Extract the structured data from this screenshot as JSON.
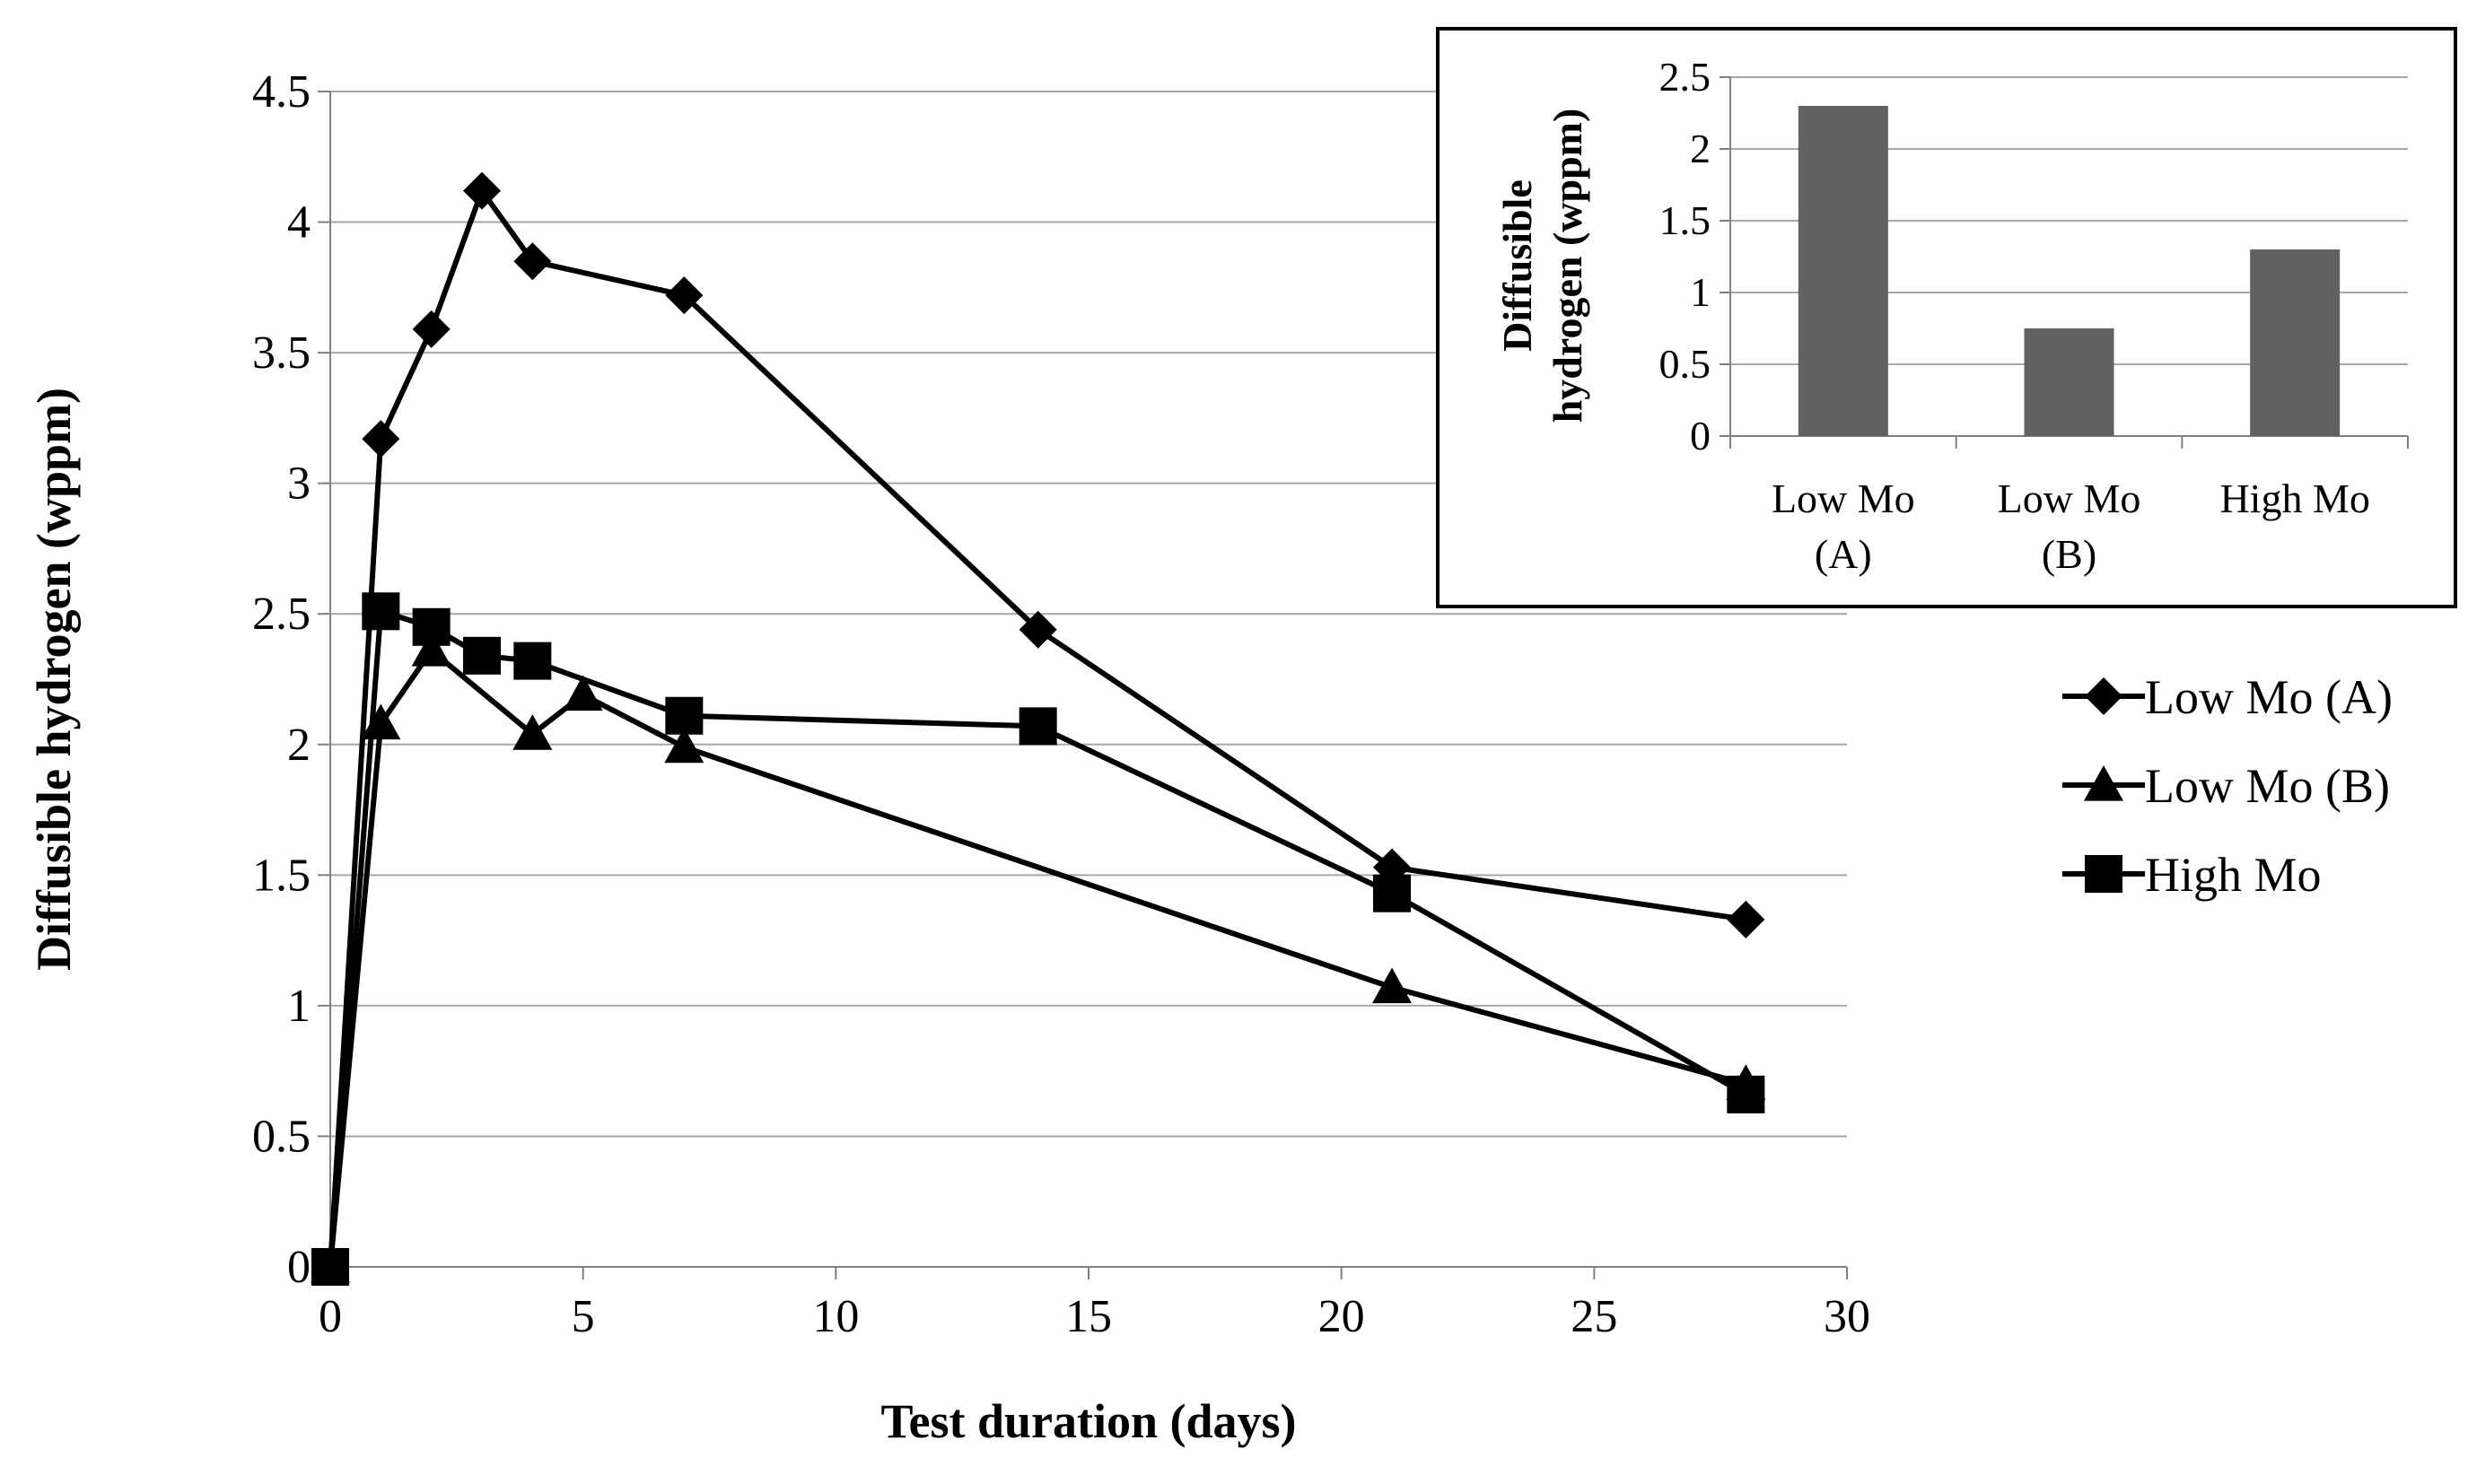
{
  "chart_data": [
    {
      "type": "line",
      "xlabel": "Test duration (days)",
      "ylabel": "Diffusible hydrogen (wppm)",
      "xlim": [
        0,
        30
      ],
      "ylim": [
        0,
        4.5
      ],
      "xticks": [
        "0",
        "5",
        "10",
        "15",
        "20",
        "25",
        "30"
      ],
      "yticks": [
        "0",
        "0.5",
        "1",
        "1.5",
        "2",
        "2.5",
        "3",
        "3.5",
        "4",
        "4.5"
      ],
      "grid": "horizontal",
      "legend": "right",
      "series": [
        {
          "name": "Low Mo (A)",
          "marker": "diamond",
          "points": [
            [
              0,
              0
            ],
            [
              1,
              3.17
            ],
            [
              2,
              3.59
            ],
            [
              3,
              4.12
            ],
            [
              4,
              3.85
            ],
            [
              7,
              3.72
            ],
            [
              14,
              2.44
            ],
            [
              21,
              1.53
            ],
            [
              28,
              1.33
            ]
          ]
        },
        {
          "name": "Low Mo (B)",
          "marker": "triangle",
          "points": [
            [
              0,
              0
            ],
            [
              1,
              2.08
            ],
            [
              2,
              2.36
            ],
            [
              4,
              2.04
            ],
            [
              5,
              2.19
            ],
            [
              7,
              1.99
            ],
            [
              21,
              1.07
            ],
            [
              28,
              0.7
            ]
          ]
        },
        {
          "name": "High Mo",
          "marker": "square",
          "points": [
            [
              0,
              0
            ],
            [
              1,
              2.51
            ],
            [
              2,
              2.45
            ],
            [
              3,
              2.34
            ],
            [
              4,
              2.32
            ],
            [
              7,
              2.11
            ],
            [
              14,
              2.07
            ],
            [
              21,
              1.43
            ],
            [
              28,
              0.66
            ]
          ]
        }
      ]
    },
    {
      "type": "bar",
      "ylabel_lines": [
        "Diffusible",
        "hydrogen (wppm)"
      ],
      "ylim": [
        0,
        2.5
      ],
      "yticks": [
        "0",
        "0.5",
        "1",
        "1.5",
        "2",
        "2.5"
      ],
      "categories": [
        {
          "lines": [
            "Low Mo",
            "(A)"
          ]
        },
        {
          "lines": [
            "Low Mo",
            "(B)"
          ]
        },
        {
          "lines": [
            "High Mo"
          ]
        }
      ],
      "values": [
        2.3,
        0.75,
        1.3
      ],
      "bar_color": "#616161",
      "grid": "horizontal"
    }
  ]
}
